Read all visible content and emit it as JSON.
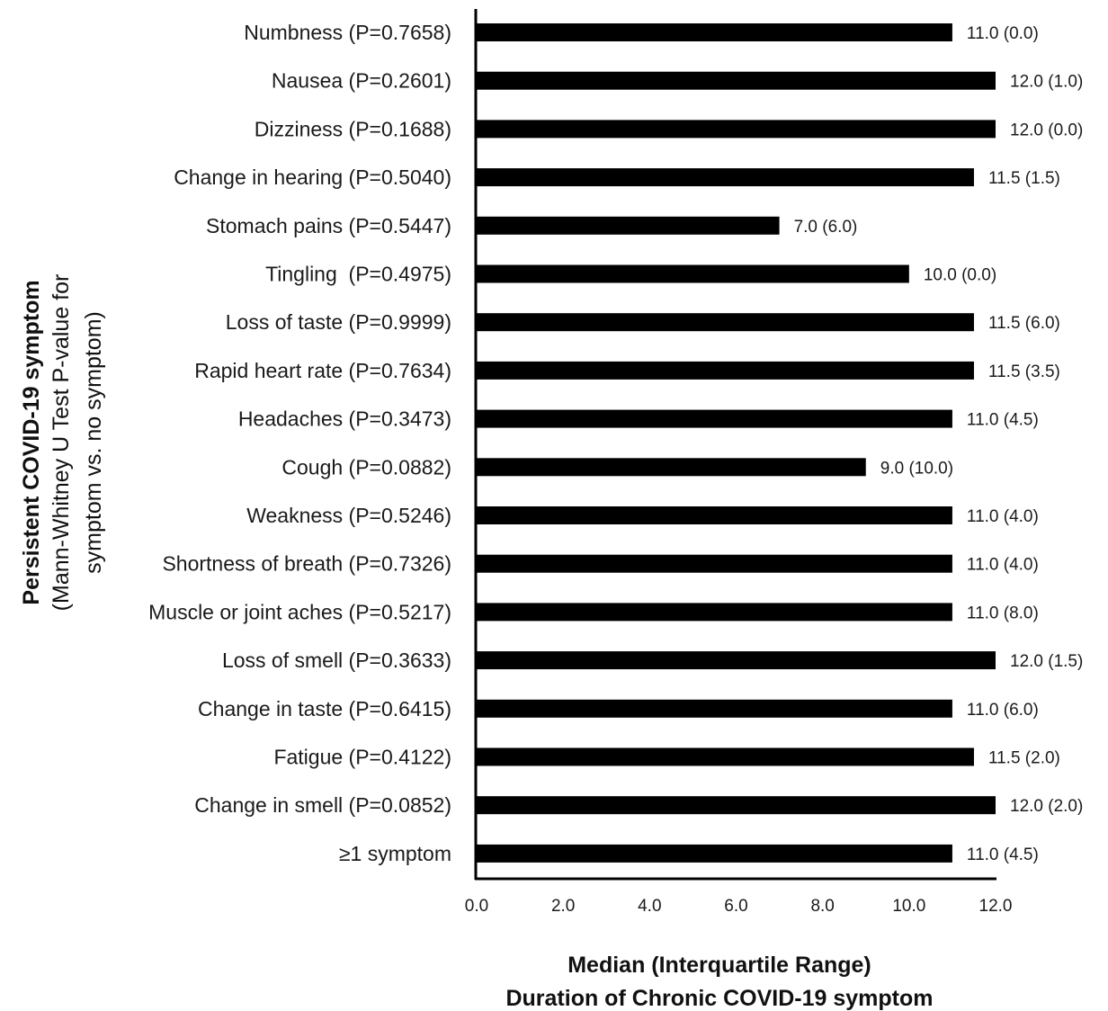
{
  "chart_data": {
    "type": "bar",
    "orientation": "horizontal",
    "categories": [
      "Numbness (P=0.7658)",
      "Nausea (P=0.2601)",
      "Dizziness (P=0.1688)",
      "Change in hearing (P=0.5040)",
      "Stomach pains (P=0.5447)",
      "Tingling  (P=0.4975)",
      "Loss of taste (P=0.9999)",
      "Rapid heart rate (P=0.7634)",
      "Headaches (P=0.3473)",
      "Cough (P=0.0882)",
      "Weakness (P=0.5246)",
      "Shortness of breath (P=0.7326)",
      "Muscle or joint aches (P=0.5217)",
      "Loss of smell (P=0.3633)",
      "Change in taste (P=0.6415)",
      "Fatigue (P=0.4122)",
      "Change in smell (P=0.0852)",
      "≥1 symptom"
    ],
    "values": [
      11.0,
      12.0,
      12.0,
      11.5,
      7.0,
      10.0,
      11.5,
      11.5,
      11.0,
      9.0,
      11.0,
      11.0,
      11.0,
      12.0,
      11.0,
      11.5,
      12.0,
      11.0
    ],
    "data_labels": [
      "11.0 (0.0)",
      "12.0 (1.0)",
      "12.0 (0.0)",
      "11.5 (1.5)",
      "7.0 (6.0)",
      "10.0 (0.0)",
      "11.5 (6.0)",
      "11.5 (3.5)",
      "11.0 (4.5)",
      "9.0 (10.0)",
      "11.0 (4.0)",
      "11.0 (4.0)",
      "11.0 (8.0)",
      "12.0 (1.5)",
      "11.0 (6.0)",
      "11.5 (2.0)",
      "12.0 (2.0)",
      "11.0 (4.5)"
    ],
    "xlim": [
      0,
      12
    ],
    "xticks": [
      "0.0",
      "2.0",
      "4.0",
      "6.0",
      "8.0",
      "10.0",
      "12.0"
    ],
    "xlabel_lines": [
      "Median (Interquartile Range)",
      "Duration of Chronic COVID-19 symptom"
    ],
    "ylabel_lines": [
      "Persistent COVID-19 symptom",
      "(Mann-Whitney U Test P-value for",
      "symptom vs. no symptom)"
    ],
    "grid": false,
    "legend": "none",
    "bar_color": "#000000"
  }
}
